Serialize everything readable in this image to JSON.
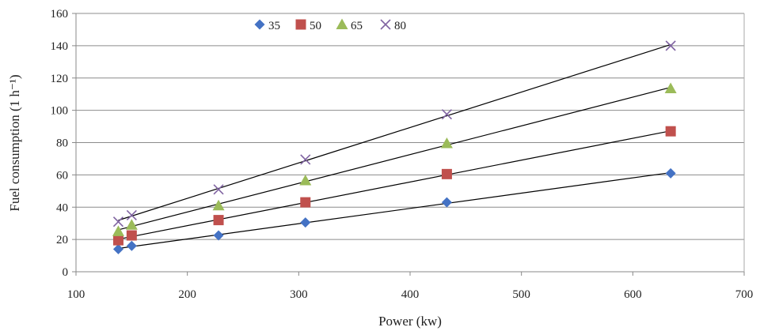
{
  "chart_data": {
    "type": "scatter",
    "title": "",
    "xlabel": "Power (kw)",
    "ylabel": "Fuel consumption (1 h⁻¹)",
    "xlim": [
      100,
      700
    ],
    "ylim": [
      0,
      160
    ],
    "xticks": [
      "100",
      "200",
      "300",
      "400",
      "500",
      "600",
      "700"
    ],
    "yticks": [
      "0",
      "20",
      "40",
      "60",
      "80",
      "100",
      "120",
      "140",
      "160"
    ],
    "grid": "horizontal",
    "legend_position": "top-center",
    "trendlines": "linear",
    "x": [
      138,
      150,
      228,
      306,
      433,
      634
    ],
    "series": [
      {
        "name": "35",
        "marker": "diamond",
        "color": "#4472C4",
        "values": [
          14,
          16,
          22.5,
          30.5,
          43,
          61
        ]
      },
      {
        "name": "50",
        "marker": "square",
        "color": "#C0504D",
        "values": [
          19.5,
          22.5,
          32,
          43,
          60.5,
          87
        ]
      },
      {
        "name": "65",
        "marker": "triangle",
        "color": "#9BBB59",
        "values": [
          25,
          29,
          41,
          56.5,
          79.5,
          113.5
        ]
      },
      {
        "name": "80",
        "marker": "x",
        "color": "#8064A2",
        "values": [
          31,
          35,
          51,
          69.5,
          97.5,
          140
        ]
      }
    ]
  }
}
